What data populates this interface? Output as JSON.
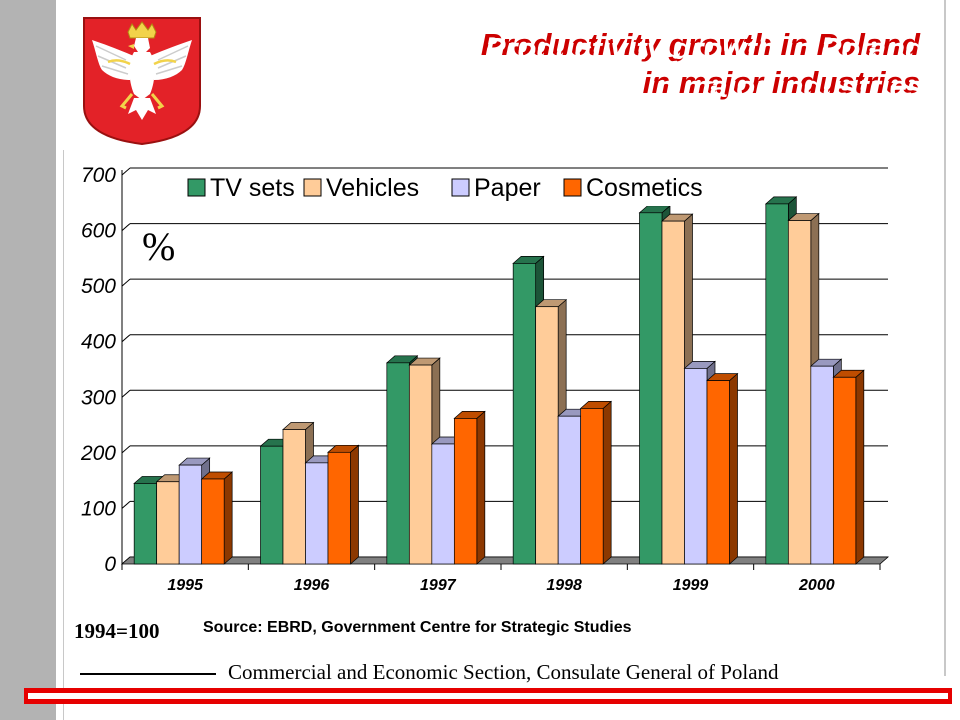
{
  "slide": {
    "title_line1": "Productivity growth in Poland",
    "title_line2": "in major industries",
    "base_note": "1994=100",
    "source": "Source:  EBRD, Government Centre for Strategic Studies",
    "footer": "Commercial and Economic Section, Consulate General of Poland"
  },
  "colors": {
    "TV sets": "#339966",
    "Vehicles": "#ffcc99",
    "Paper": "#ccccff",
    "Cosmetics": "#ff6600",
    "title_shadow": "#cc0000",
    "accent_bar": "#e60000"
  },
  "chart_data": {
    "type": "bar",
    "unit_label": "%",
    "categories": [
      "1995",
      "1996",
      "1997",
      "1998",
      "1999",
      "2000"
    ],
    "series": [
      {
        "name": "TV sets",
        "values": [
          145,
          212,
          362,
          541,
          632,
          648
        ]
      },
      {
        "name": "Vehicles",
        "values": [
          148,
          242,
          358,
          463,
          617,
          618
        ]
      },
      {
        "name": "Paper",
        "values": [
          178,
          182,
          216,
          266,
          352,
          356
        ]
      },
      {
        "name": "Cosmetics",
        "values": [
          153,
          201,
          262,
          280,
          330,
          336
        ]
      }
    ],
    "ylim": [
      0,
      700
    ],
    "yticks": [
      "0",
      "100",
      "200",
      "300",
      "400",
      "500",
      "600",
      "700"
    ],
    "grid": true,
    "legend_position": "top"
  }
}
